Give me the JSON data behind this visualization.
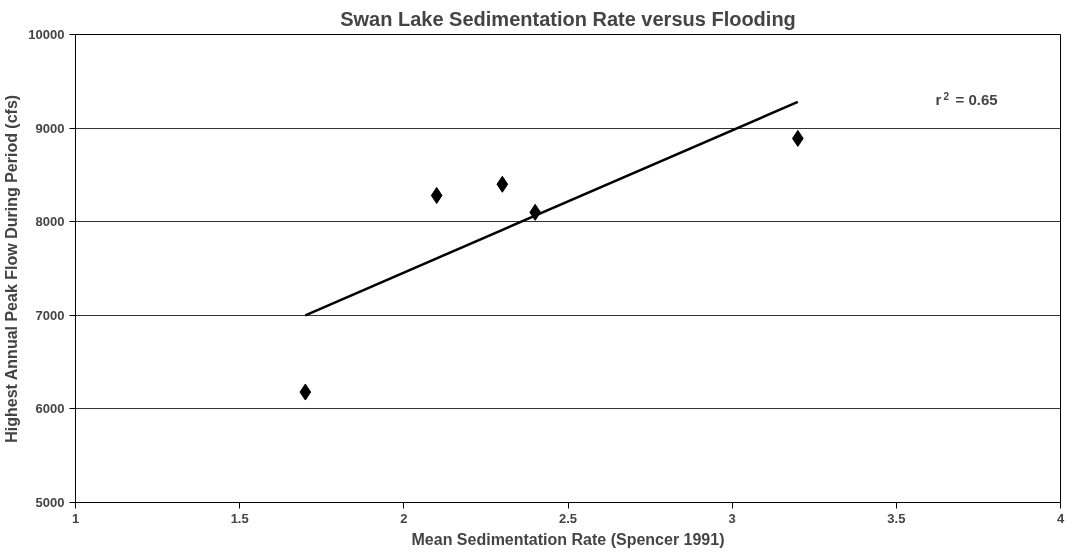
{
  "chart_data": {
    "type": "scatter",
    "title": "Swan Lake Sedimentation Rate versus Flooding",
    "xlabel": "Mean Sedimentation Rate (Spencer 1991)",
    "ylabel": "Highest Annual Peak Flow During Period (cfs)",
    "series": [
      {
        "color": "#000000",
        "marker": "diamond",
        "x": [
          1.7,
          2.1,
          2.3,
          2.4,
          3.2
        ],
        "values": [
          6180,
          8280,
          8400,
          8100,
          8890
        ]
      },
      {
        "type": "line",
        "color": "#000000",
        "marker": "none",
        "x": [
          1.7,
          3.2
        ],
        "values": [
          7000,
          9280
        ]
      }
    ],
    "annotations": [
      "r$^{2}$ = 0.65"
    ],
    "xlim": [
      1,
      4
    ],
    "xticks": [
      1,
      1.5,
      2,
      2.5,
      3,
      3.5,
      4
    ],
    "ylim": [
      5000,
      10000
    ],
    "yticks": [
      5000,
      6000,
      7000,
      8000,
      9000,
      10000
    ],
    "grid": "y"
  }
}
